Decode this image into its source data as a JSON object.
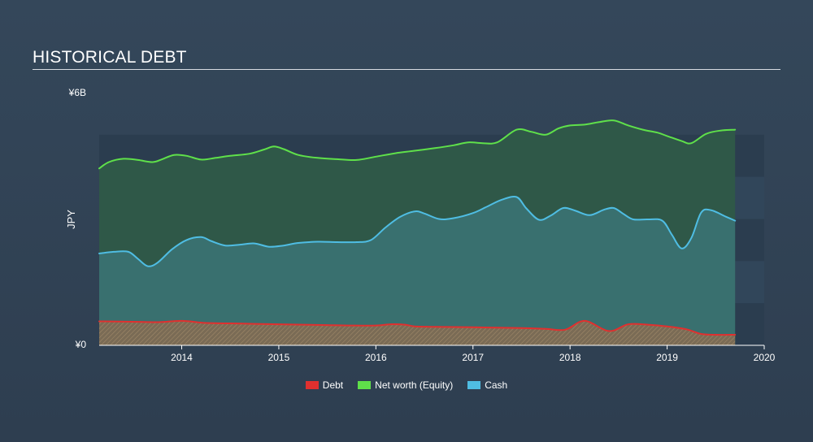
{
  "header": {
    "title": "HISTORICAL DEBT"
  },
  "chart_data": {
    "type": "area",
    "title": "HISTORICAL DEBT",
    "ylabel": "JPY",
    "xlabel": "",
    "ylim": [
      0,
      6
    ],
    "xlim": [
      2013.15,
      2020.0
    ],
    "y_unit": "B JPY",
    "y_tick_labels": [
      {
        "value": 0,
        "label": "¥0"
      },
      {
        "value": 6,
        "label": "¥6B"
      }
    ],
    "x_ticks": [
      2014,
      2015,
      2016,
      2017,
      2018,
      2019,
      2020
    ],
    "x_tick_labels": [
      "2014",
      "2015",
      "2016",
      "2017",
      "2018",
      "2019",
      "2020"
    ],
    "grid": "horizontal bands",
    "legend_position": "bottom-center",
    "series": [
      {
        "name": "Debt",
        "color": "#e0302f",
        "points": [
          [
            2013.15,
            0.57
          ],
          [
            2013.5,
            0.56
          ],
          [
            2013.75,
            0.55
          ],
          [
            2014.0,
            0.58
          ],
          [
            2014.25,
            0.53
          ],
          [
            2014.5,
            0.52
          ],
          [
            2014.75,
            0.51
          ],
          [
            2015.0,
            0.5
          ],
          [
            2015.25,
            0.49
          ],
          [
            2015.5,
            0.48
          ],
          [
            2015.75,
            0.47
          ],
          [
            2016.0,
            0.47
          ],
          [
            2016.15,
            0.5
          ],
          [
            2016.3,
            0.49
          ],
          [
            2016.4,
            0.45
          ],
          [
            2016.6,
            0.44
          ],
          [
            2017.0,
            0.43
          ],
          [
            2017.25,
            0.42
          ],
          [
            2017.5,
            0.41
          ],
          [
            2017.75,
            0.39
          ],
          [
            2017.95,
            0.37
          ],
          [
            2018.15,
            0.58
          ],
          [
            2018.4,
            0.34
          ],
          [
            2018.6,
            0.5
          ],
          [
            2018.8,
            0.49
          ],
          [
            2019.0,
            0.45
          ],
          [
            2019.2,
            0.38
          ],
          [
            2019.35,
            0.27
          ],
          [
            2019.5,
            0.25
          ],
          [
            2019.7,
            0.25
          ]
        ]
      },
      {
        "name": "Net worth (Equity)",
        "color": "#5fe04a",
        "points": [
          [
            2013.15,
            4.2
          ],
          [
            2013.25,
            4.35
          ],
          [
            2013.4,
            4.43
          ],
          [
            2013.55,
            4.4
          ],
          [
            2013.7,
            4.35
          ],
          [
            2013.8,
            4.42
          ],
          [
            2013.92,
            4.52
          ],
          [
            2014.05,
            4.5
          ],
          [
            2014.2,
            4.41
          ],
          [
            2014.35,
            4.45
          ],
          [
            2014.5,
            4.5
          ],
          [
            2014.7,
            4.55
          ],
          [
            2014.85,
            4.65
          ],
          [
            2014.95,
            4.72
          ],
          [
            2015.05,
            4.66
          ],
          [
            2015.2,
            4.52
          ],
          [
            2015.4,
            4.45
          ],
          [
            2015.6,
            4.42
          ],
          [
            2015.8,
            4.4
          ],
          [
            2016.0,
            4.48
          ],
          [
            2016.2,
            4.56
          ],
          [
            2016.4,
            4.62
          ],
          [
            2016.6,
            4.68
          ],
          [
            2016.8,
            4.75
          ],
          [
            2016.95,
            4.82
          ],
          [
            2017.1,
            4.8
          ],
          [
            2017.25,
            4.82
          ],
          [
            2017.45,
            5.12
          ],
          [
            2017.6,
            5.07
          ],
          [
            2017.75,
            5.0
          ],
          [
            2017.88,
            5.15
          ],
          [
            2018.0,
            5.22
          ],
          [
            2018.15,
            5.24
          ],
          [
            2018.3,
            5.3
          ],
          [
            2018.45,
            5.34
          ],
          [
            2018.6,
            5.22
          ],
          [
            2018.75,
            5.12
          ],
          [
            2018.9,
            5.05
          ],
          [
            2019.0,
            4.97
          ],
          [
            2019.15,
            4.85
          ],
          [
            2019.25,
            4.8
          ],
          [
            2019.4,
            5.02
          ],
          [
            2019.55,
            5.1
          ],
          [
            2019.7,
            5.12
          ]
        ]
      },
      {
        "name": "Cash",
        "color": "#4fbde3",
        "points": [
          [
            2013.15,
            2.18
          ],
          [
            2013.3,
            2.22
          ],
          [
            2013.45,
            2.22
          ],
          [
            2013.55,
            2.05
          ],
          [
            2013.65,
            1.88
          ],
          [
            2013.75,
            1.96
          ],
          [
            2013.9,
            2.28
          ],
          [
            2014.05,
            2.5
          ],
          [
            2014.2,
            2.57
          ],
          [
            2014.3,
            2.48
          ],
          [
            2014.45,
            2.37
          ],
          [
            2014.6,
            2.39
          ],
          [
            2014.75,
            2.42
          ],
          [
            2014.9,
            2.34
          ],
          [
            2015.05,
            2.37
          ],
          [
            2015.2,
            2.43
          ],
          [
            2015.4,
            2.46
          ],
          [
            2015.6,
            2.45
          ],
          [
            2015.8,
            2.45
          ],
          [
            2015.95,
            2.5
          ],
          [
            2016.1,
            2.8
          ],
          [
            2016.25,
            3.05
          ],
          [
            2016.4,
            3.18
          ],
          [
            2016.5,
            3.13
          ],
          [
            2016.65,
            3.0
          ],
          [
            2016.8,
            3.02
          ],
          [
            2017.0,
            3.14
          ],
          [
            2017.15,
            3.3
          ],
          [
            2017.3,
            3.46
          ],
          [
            2017.45,
            3.52
          ],
          [
            2017.55,
            3.25
          ],
          [
            2017.68,
            2.98
          ],
          [
            2017.8,
            3.08
          ],
          [
            2017.93,
            3.26
          ],
          [
            2018.05,
            3.2
          ],
          [
            2018.2,
            3.09
          ],
          [
            2018.35,
            3.22
          ],
          [
            2018.45,
            3.26
          ],
          [
            2018.55,
            3.12
          ],
          [
            2018.65,
            2.99
          ],
          [
            2018.8,
            2.99
          ],
          [
            2018.95,
            2.96
          ],
          [
            2019.05,
            2.62
          ],
          [
            2019.15,
            2.3
          ],
          [
            2019.25,
            2.55
          ],
          [
            2019.35,
            3.15
          ],
          [
            2019.45,
            3.21
          ],
          [
            2019.6,
            3.06
          ],
          [
            2019.7,
            2.96
          ]
        ]
      }
    ]
  }
}
